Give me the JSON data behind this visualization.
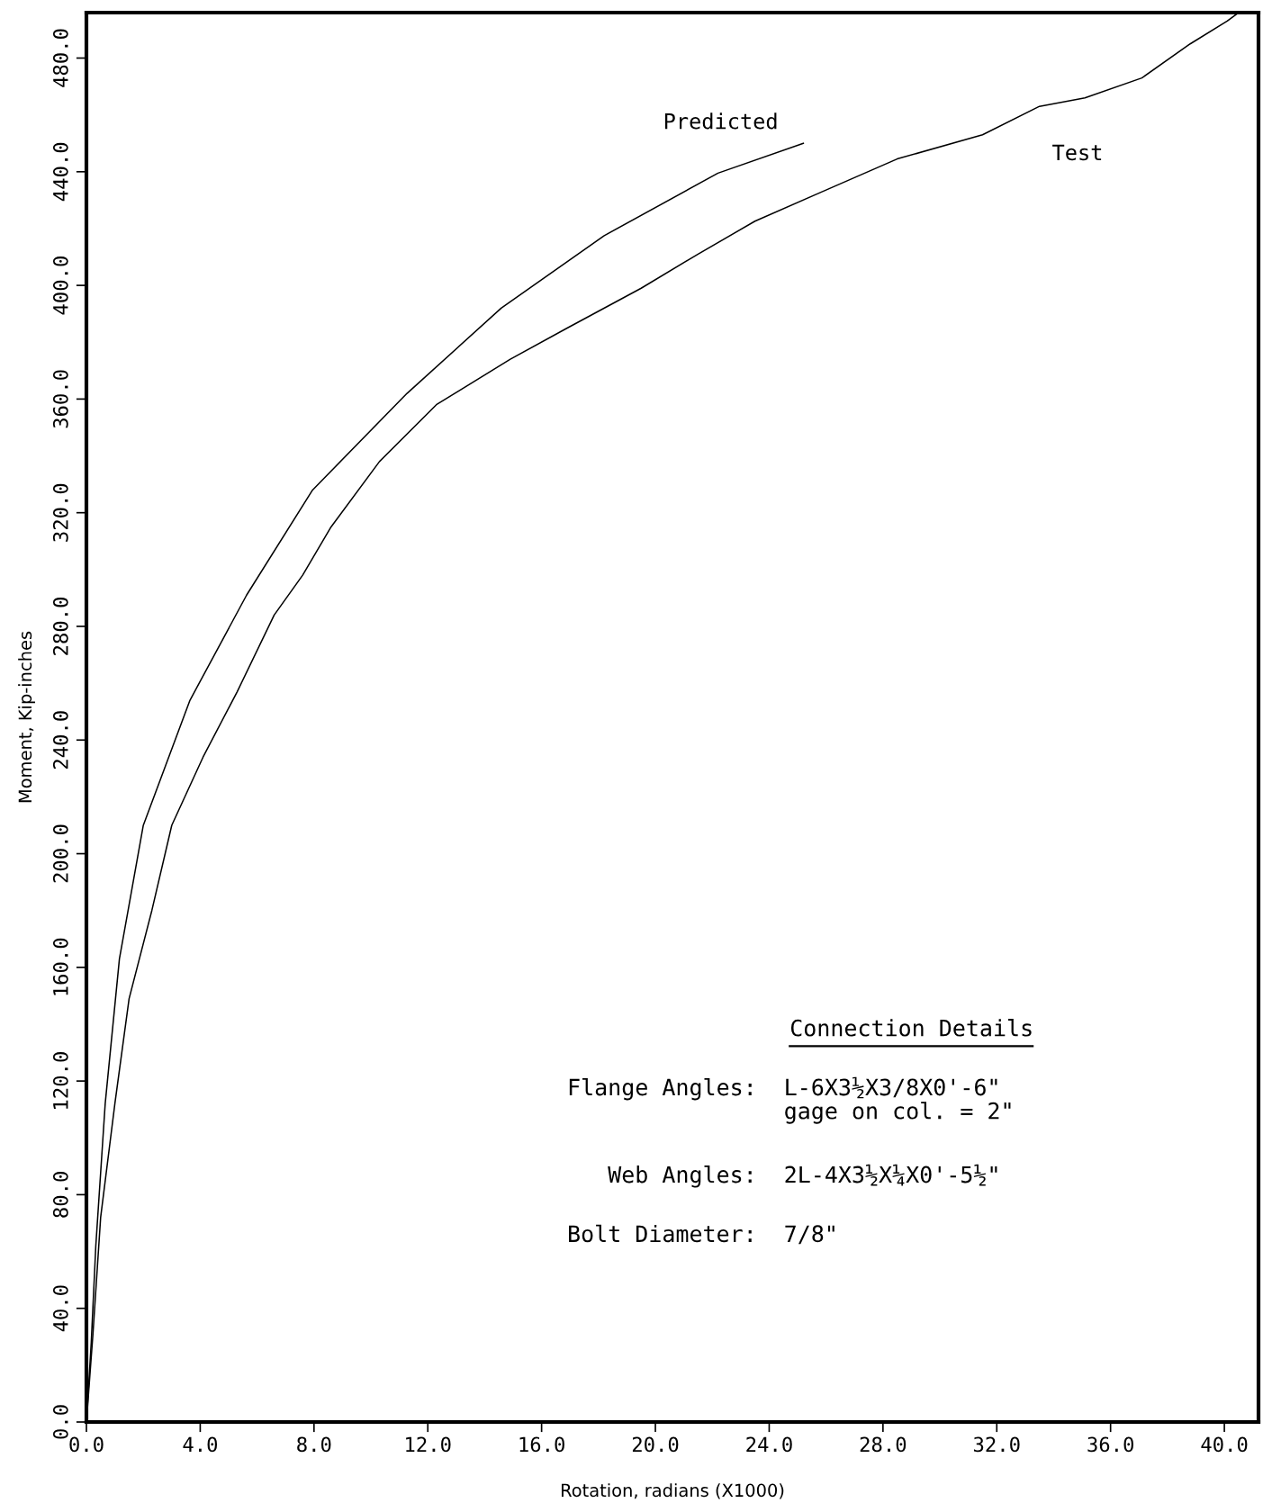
{
  "chart_data": {
    "type": "line",
    "xlabel": "Rotation, radians (X1000)",
    "ylabel": "Moment, Kip-inches",
    "xlim": [
      0,
      41.2
    ],
    "ylim": [
      0,
      496
    ],
    "xticks": [
      {
        "value": 0,
        "label": "0.0"
      },
      {
        "value": 4,
        "label": "4.0"
      },
      {
        "value": 8,
        "label": "8.0"
      },
      {
        "value": 12,
        "label": "12.0"
      },
      {
        "value": 16,
        "label": "16.0"
      },
      {
        "value": 20,
        "label": "20.0"
      },
      {
        "value": 24,
        "label": "24.0"
      },
      {
        "value": 28,
        "label": "28.0"
      },
      {
        "value": 32,
        "label": "32.0"
      },
      {
        "value": 36,
        "label": "36.0"
      },
      {
        "value": 40,
        "label": "40.0"
      }
    ],
    "yticks": [
      {
        "value": 0,
        "label": "0.0"
      },
      {
        "value": 40,
        "label": "40.0"
      },
      {
        "value": 80,
        "label": "80.0"
      },
      {
        "value": 120,
        "label": "120.0"
      },
      {
        "value": 160,
        "label": "160.0"
      },
      {
        "value": 200,
        "label": "200.0"
      },
      {
        "value": 240,
        "label": "240.0"
      },
      {
        "value": 280,
        "label": "280.0"
      },
      {
        "value": 320,
        "label": "320.0"
      },
      {
        "value": 360,
        "label": "360.0"
      },
      {
        "value": 400,
        "label": "400.0"
      },
      {
        "value": 440,
        "label": "440.0"
      },
      {
        "value": 480,
        "label": "480.0"
      }
    ],
    "grid": false,
    "legend": false,
    "marker": "none",
    "line_style": "solid",
    "series": [
      {
        "name": "Predicted",
        "color": "#000000",
        "x": [
          0,
          0.17,
          0.33,
          0.66,
          1.16,
          2.0,
          3.64,
          5.63,
          7.95,
          11.27,
          14.58,
          18.2,
          22.2,
          25.2
        ],
        "values": [
          0,
          28,
          62,
          112,
          163,
          210,
          254,
          291,
          328,
          362,
          392,
          417.5,
          439.5,
          450
        ]
      },
      {
        "name": "Test",
        "color": "#000000",
        "x": [
          0,
          0.23,
          0.5,
          1.0,
          1.5,
          2.3,
          3.0,
          4.1,
          5.3,
          6.6,
          7.6,
          8.6,
          10.3,
          12.3,
          14.9,
          16.9,
          19.5,
          21.5,
          23.5,
          25.8,
          28.5,
          31.5,
          33.5,
          35.1,
          37.1,
          38.8,
          40.1,
          40.5
        ],
        "values": [
          0,
          31,
          72,
          112,
          149,
          180,
          210,
          234,
          257,
          284,
          298,
          315,
          338,
          358,
          374,
          385,
          399,
          411,
          422.6,
          432.7,
          444.5,
          453,
          463,
          466,
          473,
          485,
          493,
          496
        ]
      }
    ],
    "annotations": [
      "Connection Details",
      "Flange Angles:",
      "L-6X3½X3/8X0'-6\"\ngage on col. = 2\"",
      "Web Angles:",
      "2L-4X3½X¼X0'-5½\"",
      "Bolt Diameter:",
      "7/8\""
    ]
  }
}
